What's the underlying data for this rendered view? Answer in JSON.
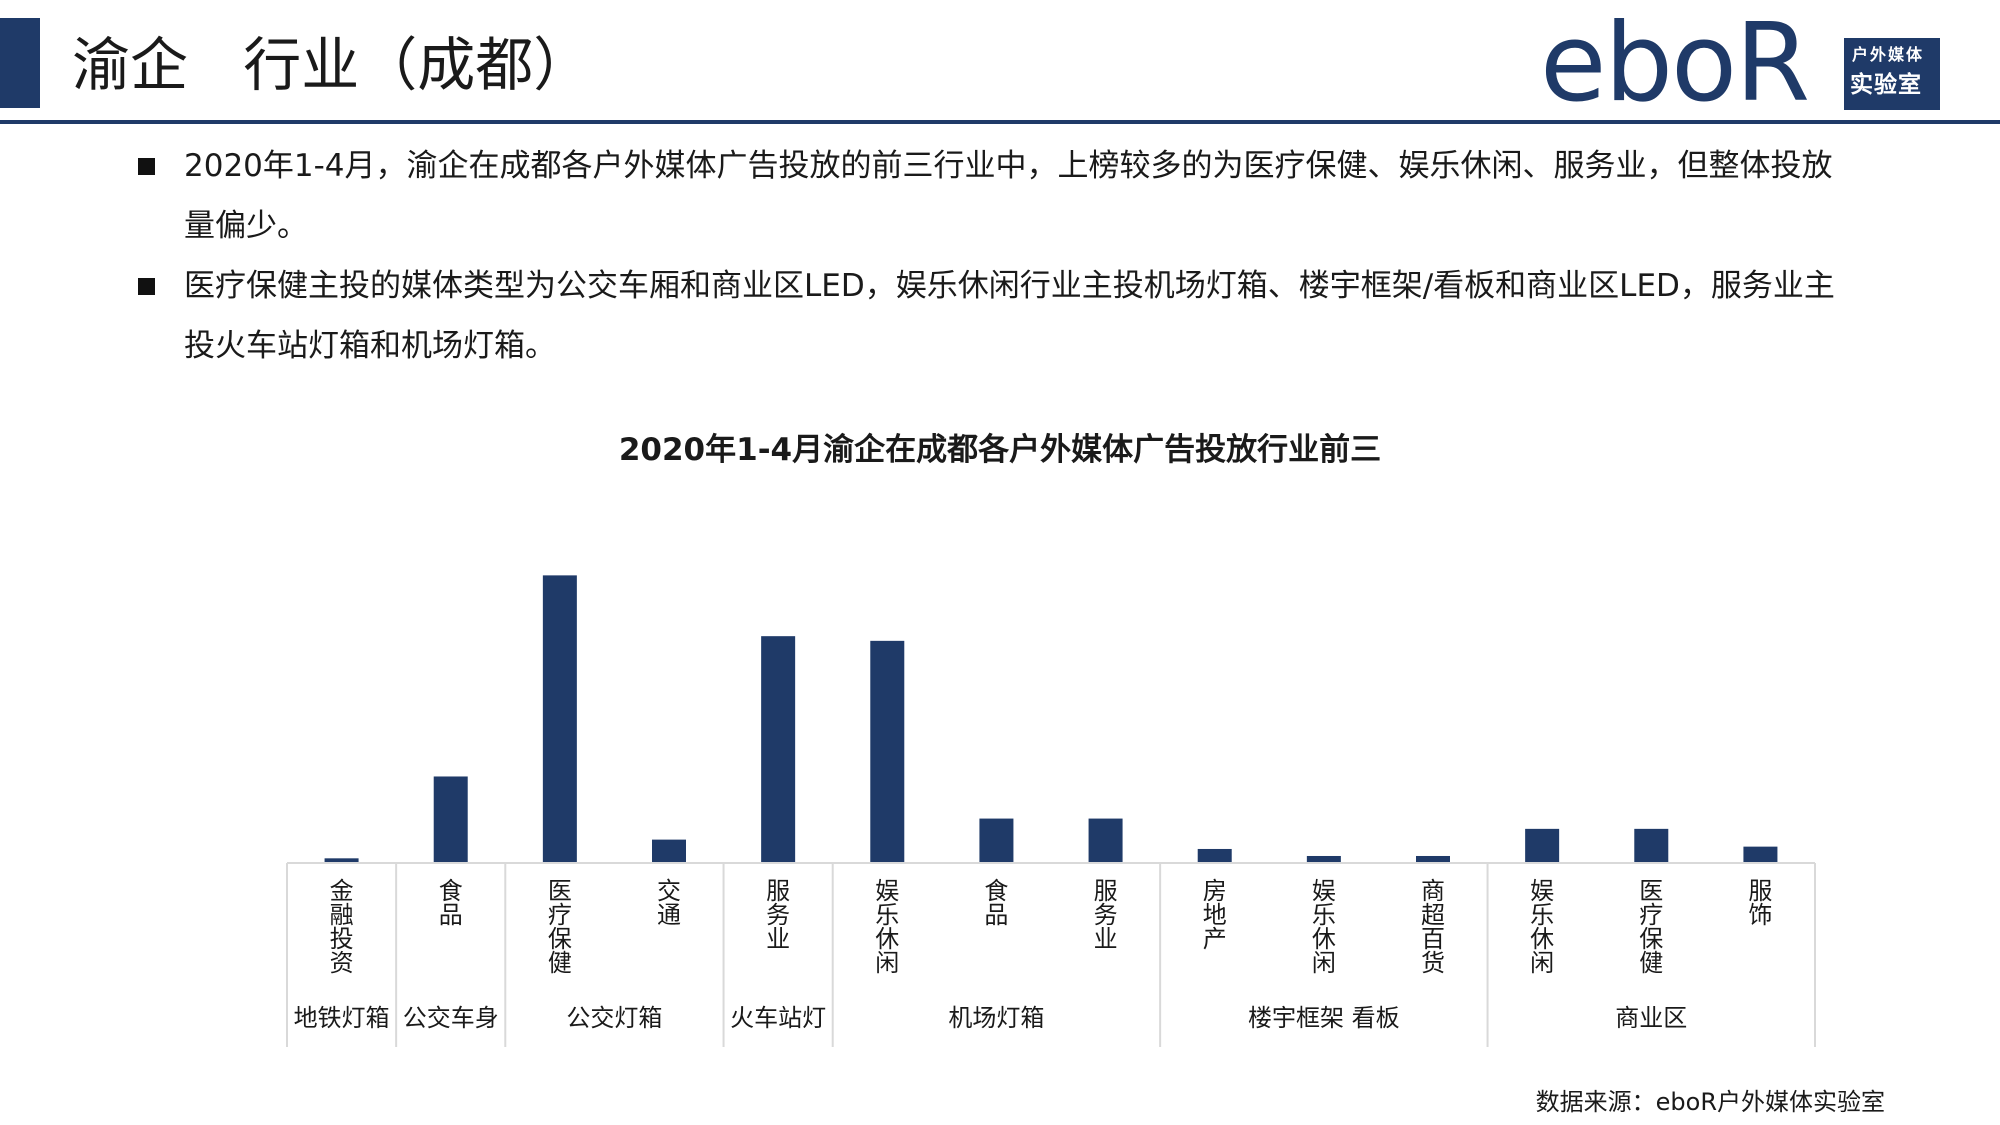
{
  "header": {
    "title": "渝企   行业（成都）"
  },
  "logo": {
    "word": "eboR",
    "line1": "户外媒体",
    "line2": "实验室"
  },
  "bullets": [
    "2020年1-4月，渝企在成都各户外媒体广告投放的前三行业中，上榜较多的为医疗保健、娱乐休闲、服务业，但整体投放量偏少。",
    "医疗保健主投的媒体类型为公交车厢和商业区LED，娱乐休闲行业主投机场灯箱、楼宇框架/看板和商业区LED，服务业主投火车站灯箱和机场灯箱。"
  ],
  "colors": {
    "accent": "#1f3a68",
    "bar": "#1f3a68",
    "axis": "#d9d9d9"
  },
  "chart_data": {
    "type": "bar",
    "title": "2020年1-4月渝企在成都各户外媒体广告投放行业前三",
    "categories": [
      "金融投资",
      "食品",
      "医疗保健",
      "交通",
      "服务业",
      "娱乐休闲",
      "食品",
      "服务业",
      "房地产",
      "娱乐休闲",
      "商超百货",
      "娱乐休闲",
      "医疗保健",
      "服饰"
    ],
    "values": [
      1.0,
      18.5,
      61.5,
      5.0,
      48.5,
      47.5,
      9.5,
      9.5,
      3.0,
      1.5,
      1.5,
      7.3,
      7.3,
      3.5
    ],
    "groups": [
      {
        "label": "地铁灯箱",
        "count": 1
      },
      {
        "label": "公交车身",
        "count": 1
      },
      {
        "label": "公交灯箱",
        "count": 2
      },
      {
        "label": "火车站灯",
        "count": 1
      },
      {
        "label": "机场灯箱",
        "count": 3
      },
      {
        "label": "楼宇框架 看板",
        "count": 3
      },
      {
        "label": "商业区",
        "count": 3
      }
    ],
    "ylim": [
      0,
      65
    ],
    "grid": false,
    "legend": "none"
  },
  "source": "数据来源：eboR户外媒体实验室"
}
